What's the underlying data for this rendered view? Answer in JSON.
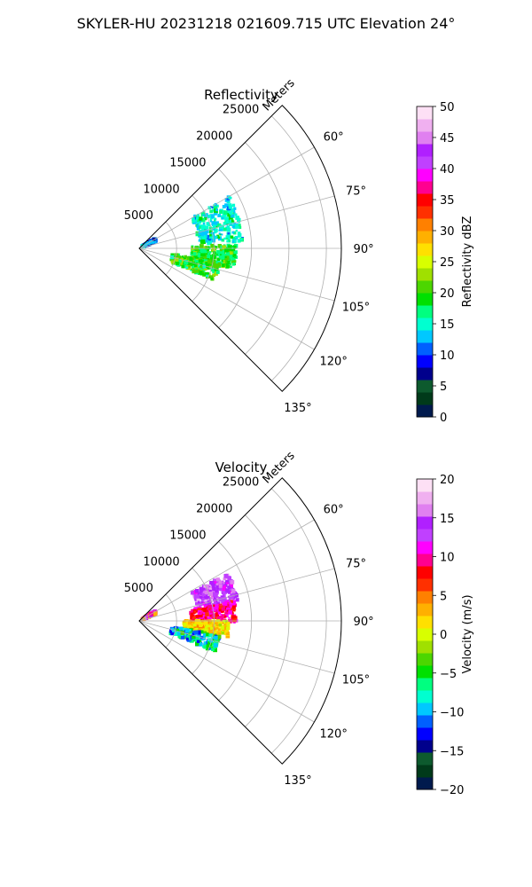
{
  "figure": {
    "title": "SKYLER-HU  20231218  021609.715 UTC Elevation 24°"
  },
  "chart_data": [
    {
      "type": "heatmap",
      "projection": "polar-sector",
      "title": "Reflectivity",
      "range_label": "Meters",
      "range_ticks": [
        5000,
        10000,
        15000,
        20000,
        25000
      ],
      "range_max": 27000,
      "azimuth_range": [
        45,
        135
      ],
      "azimuth_ticks": [
        "60°",
        "75°",
        "90°",
        "105°",
        "120°",
        "135°"
      ],
      "grid": true,
      "colorbar": {
        "label": "Reflectivity dBZ",
        "range": [
          0,
          50
        ],
        "ticks": [
          "0",
          "5",
          "10",
          "15",
          "20",
          "25",
          "30",
          "35",
          "40",
          "45",
          "50"
        ],
        "colors": [
          "#001a4d",
          "#003a1a",
          "#0d5a2e",
          "#00008c",
          "#0000ff",
          "#0060ff",
          "#00c8ff",
          "#00ffd0",
          "#00ff80",
          "#00e000",
          "#4cd600",
          "#a0e000",
          "#d8ff00",
          "#ffe000",
          "#ffb000",
          "#ff8000",
          "#ff3000",
          "#ff0000",
          "#ff0090",
          "#ff00ff",
          "#c040ff",
          "#b020ff",
          "#e080f0",
          "#f0b0f0",
          "#fde0f5"
        ]
      },
      "echoes": [
        {
          "az": [
            60,
            86
          ],
          "r": [
            8000,
            14000
          ],
          "values": [
            12,
            14,
            16,
            18,
            15,
            13
          ]
        },
        {
          "az": [
            88,
            102
          ],
          "r": [
            7000,
            13000
          ],
          "values": [
            17,
            19,
            20,
            22,
            18
          ]
        },
        {
          "az": [
            100,
            113
          ],
          "r": [
            4500,
            11000
          ],
          "values": [
            18,
            20,
            21,
            23,
            19,
            16
          ]
        },
        {
          "az": [
            58,
            66
          ],
          "r": [
            500,
            2500
          ],
          "values": [
            8,
            12,
            14
          ]
        }
      ]
    },
    {
      "type": "heatmap",
      "projection": "polar-sector",
      "title": "Velocity",
      "range_label": "Meters",
      "range_ticks": [
        5000,
        10000,
        15000,
        20000,
        25000
      ],
      "range_max": 27000,
      "azimuth_range": [
        45,
        135
      ],
      "azimuth_ticks": [
        "60°",
        "75°",
        "90°",
        "105°",
        "120°",
        "135°"
      ],
      "grid": true,
      "colorbar": {
        "label": "Velocity (m/s)",
        "range": [
          -20,
          20
        ],
        "ticks": [
          "−20",
          "−15",
          "−10",
          "−5",
          "0",
          "5",
          "10",
          "15",
          "20"
        ],
        "colors": [
          "#001a4d",
          "#003a1a",
          "#0d5a2e",
          "#00008c",
          "#0000ff",
          "#0060ff",
          "#00c8ff",
          "#00ffd0",
          "#00ff80",
          "#00e000",
          "#4cd600",
          "#a0e000",
          "#d8ff00",
          "#ffe000",
          "#ffb000",
          "#ff8000",
          "#ff3000",
          "#ff0000",
          "#ff0090",
          "#ff00ff",
          "#c040ff",
          "#b020ff",
          "#e080f0",
          "#f0b0f0",
          "#fde0f5"
        ]
      },
      "echoes": [
        {
          "az": [
            62,
            78
          ],
          "r": [
            8000,
            13500
          ],
          "values": [
            16,
            14,
            13,
            15,
            12
          ]
        },
        {
          "az": [
            78,
            92
          ],
          "r": [
            7000,
            13000
          ],
          "values": [
            9,
            8,
            10,
            7,
            11
          ]
        },
        {
          "az": [
            90,
            100
          ],
          "r": [
            6000,
            12000
          ],
          "values": [
            2,
            1,
            3,
            0,
            4
          ]
        },
        {
          "az": [
            100,
            112
          ],
          "r": [
            4500,
            11000
          ],
          "values": [
            -4,
            -6,
            -8,
            -10,
            -12
          ]
        },
        {
          "az": [
            58,
            66
          ],
          "r": [
            500,
            2500
          ],
          "values": [
            4,
            10,
            15
          ]
        }
      ]
    }
  ]
}
